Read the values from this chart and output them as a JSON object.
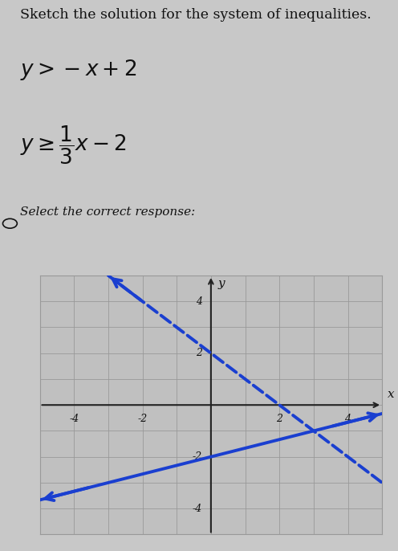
{
  "title_text": "Sketch the solution for the system of inequalities.",
  "question_label": "Select the correct response:",
  "xlim": [
    -5,
    5
  ],
  "ylim": [
    -5,
    5
  ],
  "xticks": [
    -4,
    -2,
    2,
    4
  ],
  "yticks": [
    -4,
    -2,
    2,
    4
  ],
  "line1_slope": -1,
  "line1_intercept": 2,
  "line1_dashed": true,
  "line2_slope": 0.3333333333,
  "line2_intercept": -2,
  "line2_dashed": false,
  "line_color": "#1a3fd0",
  "grid_color": "#999999",
  "bg_outer": "#c8c8c8",
  "plot_bg": "#c0c0c0",
  "text_color": "#111111",
  "axis_color": "#222222",
  "radio_x": 0.03,
  "radio_y": 0.155
}
